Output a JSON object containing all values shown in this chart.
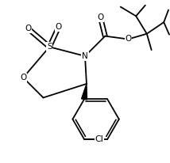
{
  "bg_color": "#ffffff",
  "line_color": "#000000",
  "lw": 1.3,
  "fs": 7.5,
  "figsize": [
    2.14,
    2.06
  ],
  "dpi": 100,
  "xlim": [
    0,
    11.0
  ],
  "ylim": [
    0,
    10.5
  ]
}
